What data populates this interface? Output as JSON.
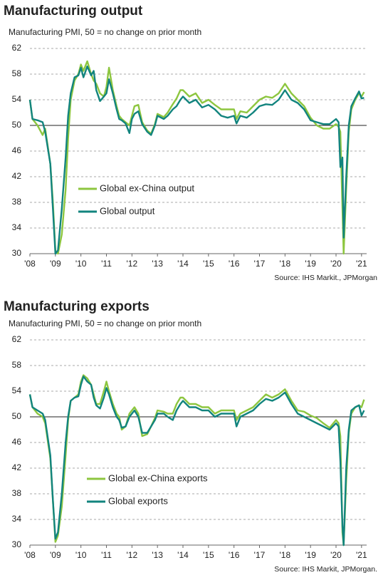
{
  "chart_data": [
    {
      "type": "line",
      "title": "Manufacturing output",
      "subtitle": "Manufacturing PMI, 50 = no change on prior month",
      "source": "Source: IHS Markit., JPMorgan",
      "x": [
        2008.0,
        2008.1,
        2008.3,
        2008.5,
        2008.6,
        2008.8,
        2008.9,
        2009.0,
        2009.1,
        2009.25,
        2009.4,
        2009.5,
        2009.6,
        2009.75,
        2009.9,
        2010.0,
        2010.1,
        2010.25,
        2010.4,
        2010.5,
        2010.6,
        2010.75,
        2010.9,
        2011.0,
        2011.1,
        2011.25,
        2011.4,
        2011.5,
        2011.6,
        2011.75,
        2011.9,
        2012.0,
        2012.1,
        2012.25,
        2012.4,
        2012.6,
        2012.75,
        2012.9,
        2013.0,
        2013.25,
        2013.4,
        2013.6,
        2013.75,
        2013.9,
        2014.0,
        2014.25,
        2014.5,
        2014.75,
        2015.0,
        2015.25,
        2015.5,
        2015.75,
        2016.0,
        2016.1,
        2016.25,
        2016.5,
        2016.75,
        2017.0,
        2017.25,
        2017.5,
        2017.75,
        2018.0,
        2018.25,
        2018.5,
        2018.75,
        2019.0,
        2019.25,
        2019.5,
        2019.75,
        2020.0,
        2020.1,
        2020.17,
        2020.25,
        2020.3,
        2020.4,
        2020.5,
        2020.6,
        2020.75,
        2020.9,
        2021.0,
        2021.1
      ],
      "series": [
        {
          "name": "Global ex-China output",
          "color": "#8dc63f",
          "values": [
            54,
            51,
            50,
            48.5,
            49.5,
            44,
            38,
            30.5,
            30,
            33,
            40,
            48,
            54,
            57,
            58,
            59.5,
            58.5,
            60,
            58,
            57,
            56.5,
            55,
            54.5,
            56,
            59,
            55.5,
            53,
            51.5,
            51,
            50.5,
            50,
            51.5,
            53,
            53.2,
            50.5,
            49.2,
            48.7,
            50.2,
            51.8,
            51.3,
            52,
            53.3,
            54.2,
            55.5,
            55.5,
            54.5,
            55,
            53.5,
            54,
            53.2,
            52.5,
            52.5,
            52.5,
            51,
            52.2,
            52,
            53,
            54,
            54.5,
            54.3,
            55,
            56.5,
            55,
            54,
            53,
            51.2,
            50,
            49.5,
            49.5,
            50.2,
            49.8,
            49,
            37,
            30,
            40,
            49,
            52.5,
            54,
            55,
            54.5,
            55.2
          ]
        },
        {
          "name": "Global output",
          "color": "#12847e",
          "values": [
            54,
            51,
            50.8,
            50.5,
            49,
            44,
            37,
            30,
            30.5,
            37,
            45,
            51.5,
            55,
            57.5,
            57.8,
            59,
            57.5,
            59.2,
            57.8,
            58.5,
            55.5,
            53.8,
            54.5,
            55,
            57.2,
            55,
            52.5,
            51,
            50.8,
            50.3,
            48.8,
            51,
            51.8,
            52.2,
            50.2,
            49,
            48.5,
            50,
            51.5,
            51,
            51.5,
            52.5,
            53,
            54,
            54.5,
            53.5,
            54,
            52.8,
            53.2,
            52.5,
            51.5,
            51.2,
            51.5,
            50.3,
            51.5,
            51.2,
            52,
            53,
            53.3,
            53.2,
            54,
            55.5,
            54,
            53.5,
            52.5,
            50.8,
            50.5,
            50.2,
            50.2,
            51,
            50.5,
            43.5,
            45,
            32.5,
            42,
            50,
            53,
            54.2,
            55.3,
            54.2,
            54.3
          ]
        }
      ],
      "xlim": [
        2008,
        2021.2
      ],
      "xticks": [
        {
          "value": 2008,
          "label": "'08"
        },
        {
          "value": 2009,
          "label": "'09"
        },
        {
          "value": 2010,
          "label": "'10"
        },
        {
          "value": 2011,
          "label": "'11"
        },
        {
          "value": 2012,
          "label": "'12"
        },
        {
          "value": 2013,
          "label": "'13"
        },
        {
          "value": 2014,
          "label": "'14"
        },
        {
          "value": 2015,
          "label": "'15"
        },
        {
          "value": 2016,
          "label": "'16"
        },
        {
          "value": 2017,
          "label": "'17"
        },
        {
          "value": 2018,
          "label": "'18"
        },
        {
          "value": 2019,
          "label": "'19"
        },
        {
          "value": 2020,
          "label": "'20"
        },
        {
          "value": 2021,
          "label": "'21"
        }
      ],
      "ylim": [
        30,
        62
      ],
      "yticks": [
        30,
        34,
        38,
        42,
        46,
        50,
        54,
        58,
        62
      ],
      "grid": true
    },
    {
      "type": "line",
      "title": "Manufacturing exports",
      "subtitle": "Manufacturing PMI, 50 = no change on prior month",
      "source": "Source: IHS Markit, JPMorgan.",
      "series": [
        {
          "name": "Global ex-China exports",
          "color": "#8dc63f",
          "values": [
            53.5,
            51.5,
            50.5,
            50,
            49,
            43.5,
            37,
            30.5,
            31.5,
            36,
            44,
            49.5,
            52.5,
            53,
            53.5,
            55.5,
            56.5,
            56,
            55,
            53.5,
            52,
            52,
            54,
            55.5,
            54,
            52,
            50.5,
            50,
            48,
            48.5,
            50.5,
            51,
            51.5,
            50.5,
            47,
            47.3,
            48.5,
            49.8,
            51,
            50.8,
            50.5,
            50.5,
            52,
            53,
            53,
            52,
            52,
            51.5,
            51.5,
            50.5,
            51,
            51,
            51,
            49.5,
            50.5,
            51,
            51.5,
            52.5,
            53.5,
            53,
            53.5,
            54.3,
            52.5,
            51,
            50.8,
            50.2,
            49.8,
            49,
            48.3,
            49.5,
            49,
            47,
            32,
            30,
            40,
            47.5,
            50.5,
            51.5,
            51.8,
            51.5,
            52.7
          ]
        },
        {
          "name": "Global exports",
          "color": "#12847e",
          "values": [
            53.5,
            51.5,
            51,
            50.5,
            49.5,
            44,
            37,
            31,
            32,
            38,
            46,
            50,
            52.5,
            53,
            53.2,
            55,
            56.3,
            55.5,
            55,
            53,
            51.8,
            51.3,
            53,
            54.5,
            53.5,
            51.5,
            50,
            49.5,
            48.3,
            48.5,
            50,
            50.5,
            51,
            50,
            47.5,
            47.5,
            48.5,
            49.5,
            50.5,
            50.5,
            50,
            49.5,
            51,
            52,
            52.5,
            51.5,
            51.5,
            51,
            51,
            50,
            50.5,
            50.5,
            50.5,
            48.5,
            50,
            50.5,
            51,
            52,
            52.8,
            52.5,
            53,
            53.8,
            52,
            50.5,
            50,
            49.5,
            49,
            48.5,
            48,
            49,
            48.5,
            43,
            33,
            30,
            42,
            48,
            51,
            51.5,
            51.8,
            50.2,
            51
          ]
        }
      ],
      "ylim": [
        30,
        62
      ],
      "yticks": [
        30,
        34,
        38,
        42,
        46,
        50,
        54,
        58,
        62
      ],
      "grid": true
    }
  ]
}
